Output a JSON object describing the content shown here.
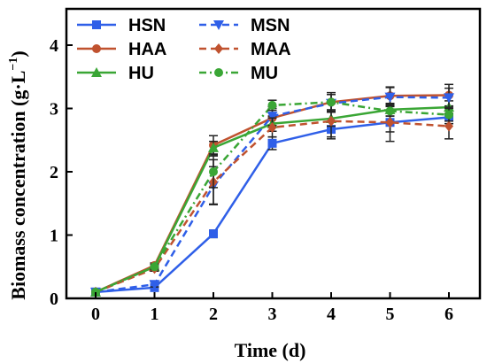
{
  "chart_data": {
    "type": "line",
    "xlabel": "Time (d)",
    "ylabel_main": "Biomass concentration (g·L",
    "ylabel_exp": "−1",
    "ylabel_close": ")",
    "x": [
      0,
      1,
      2,
      3,
      4,
      5,
      6
    ],
    "xlim": [
      0,
      6
    ],
    "ylim": [
      0,
      4
    ],
    "x_ticks": [
      "0",
      "1",
      "2",
      "3",
      "4",
      "5",
      "6"
    ],
    "y_ticks": [
      "0",
      "1",
      "2",
      "3",
      "4"
    ],
    "grid": false,
    "legend_position": "top-left",
    "series": [
      {
        "name": "HSN",
        "color": "#2f5fe8",
        "dash": "solid",
        "marker": "square",
        "values": [
          0.1,
          0.17,
          1.02,
          2.45,
          2.67,
          2.78,
          2.86
        ],
        "errors": [
          0.02,
          0.03,
          0.06,
          0.1,
          0.12,
          0.15,
          0.1
        ]
      },
      {
        "name": "HAA",
        "color": "#c0522f",
        "dash": "solid",
        "marker": "circle",
        "values": [
          0.1,
          0.52,
          2.42,
          2.85,
          3.1,
          3.2,
          3.21
        ],
        "errors": [
          0.02,
          0.04,
          0.15,
          0.15,
          0.15,
          0.14,
          0.17
        ]
      },
      {
        "name": "HU",
        "color": "#3aa635",
        "dash": "solid",
        "marker": "triangle",
        "values": [
          0.1,
          0.5,
          2.38,
          2.76,
          2.84,
          2.98,
          3.02
        ],
        "errors": [
          0.02,
          0.04,
          0.1,
          0.12,
          0.12,
          0.1,
          0.1
        ]
      },
      {
        "name": "MSN",
        "color": "#2f5fe8",
        "dash": "dashed",
        "marker": "triangle-down",
        "values": [
          0.1,
          0.22,
          1.78,
          2.88,
          3.08,
          3.18,
          3.17
        ],
        "errors": [
          0.02,
          0.04,
          0.3,
          0.15,
          0.14,
          0.15,
          0.15
        ]
      },
      {
        "name": "MAA",
        "color": "#c0522f",
        "dash": "dashed",
        "marker": "diamond",
        "values": [
          0.1,
          0.47,
          1.84,
          2.7,
          2.8,
          2.78,
          2.72
        ],
        "errors": [
          0.02,
          0.04,
          0.35,
          0.15,
          0.28,
          0.3,
          0.2
        ]
      },
      {
        "name": "MU",
        "color": "#3aa635",
        "dash": "dashdot",
        "marker": "circle",
        "values": [
          0.1,
          0.5,
          2.0,
          3.05,
          3.1,
          2.96,
          2.9
        ],
        "errors": [
          0.02,
          0.04,
          0.25,
          0.08,
          0.12,
          0.08,
          0.1
        ]
      }
    ]
  }
}
